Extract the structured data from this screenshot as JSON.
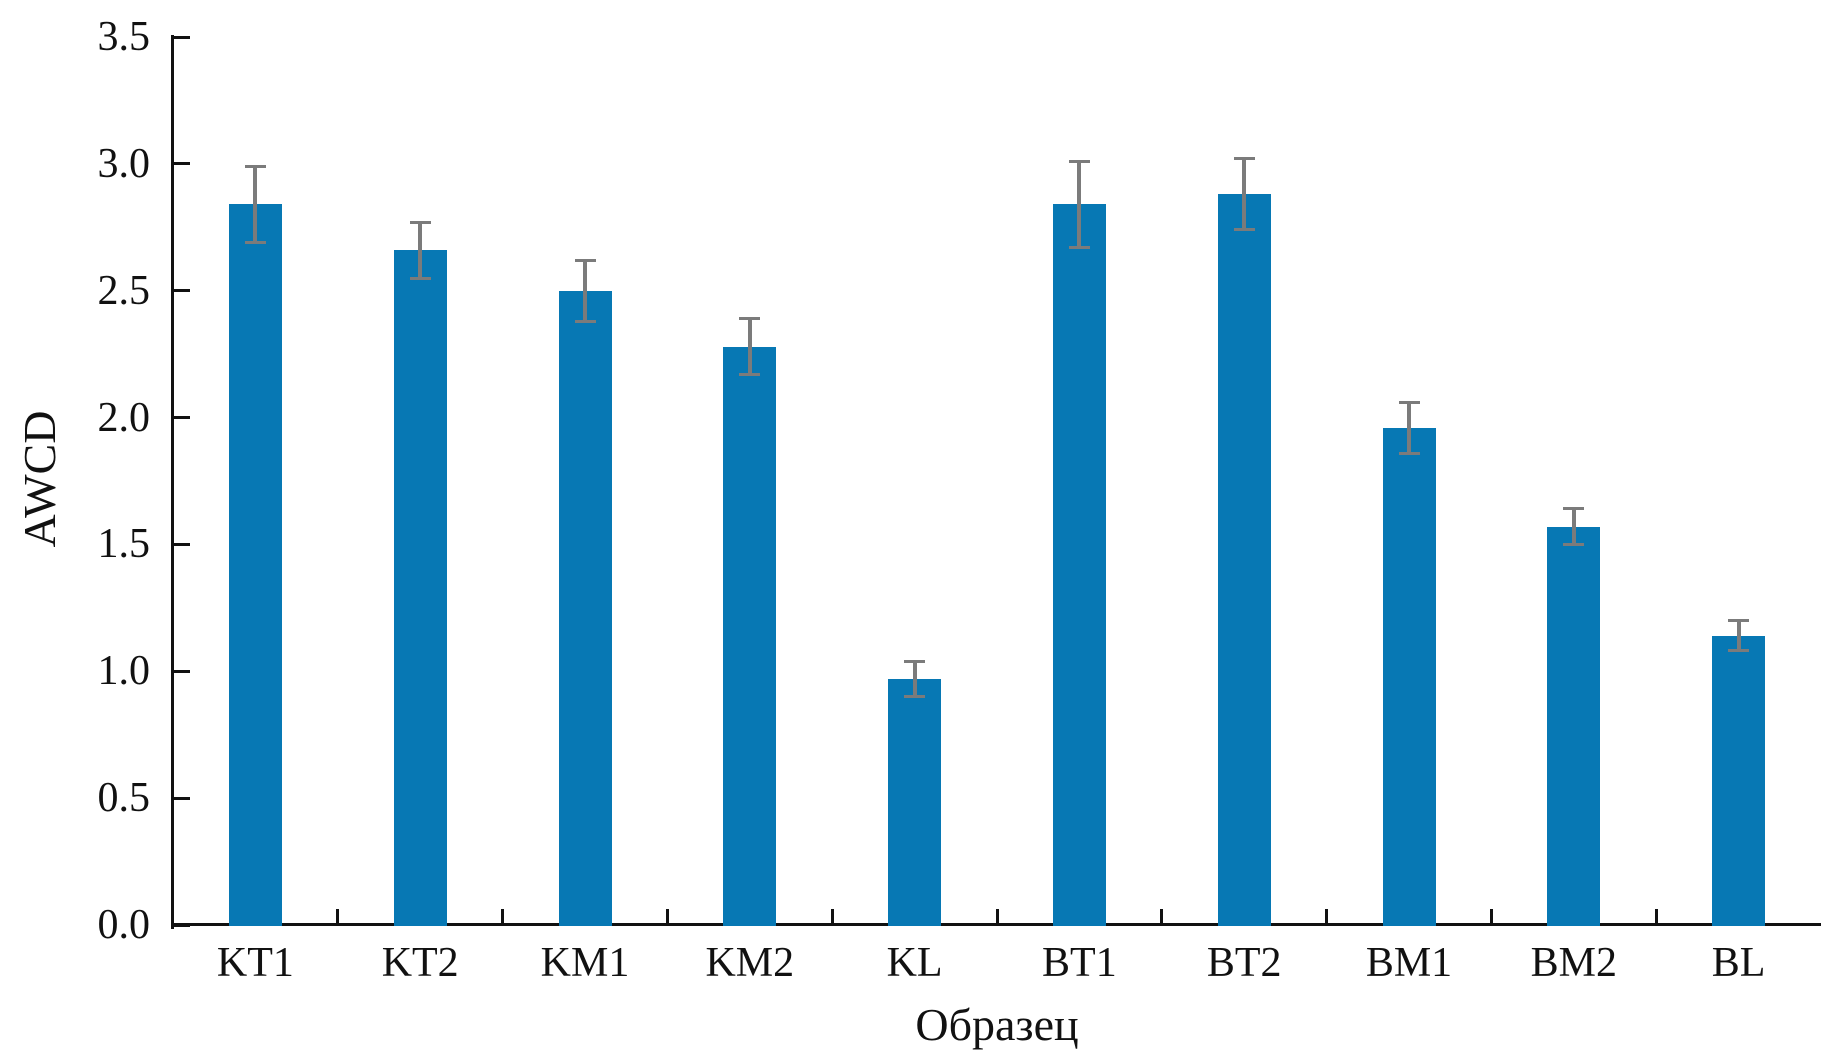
{
  "figure": {
    "background": "#ffffff"
  },
  "chart_data": {
    "type": "bar",
    "title": "",
    "categories": [
      "KT1",
      "KT2",
      "KM1",
      "KM2",
      "KL",
      "BT1",
      "BT2",
      "BM1",
      "BM2",
      "BL"
    ],
    "values": [
      2.84,
      2.66,
      2.5,
      2.28,
      0.97,
      2.84,
      2.88,
      1.96,
      1.57,
      1.14
    ],
    "error_bars": [
      0.15,
      0.11,
      0.12,
      0.11,
      0.07,
      0.17,
      0.14,
      0.1,
      0.07,
      0.06
    ],
    "xlabel": "Образец",
    "ylabel": "AWCD",
    "ylim": [
      0,
      3.5
    ],
    "ytick_step": 0.5,
    "ytick_labels": [
      "0.0",
      "0.5",
      "1.0",
      "1.5",
      "2.0",
      "2.5",
      "3.0",
      "3.5"
    ],
    "grid": false,
    "legend_position": "none",
    "bar_color": "#0778B4",
    "error_bar_color": "#7b7b7b",
    "axis_color": "#111111"
  }
}
